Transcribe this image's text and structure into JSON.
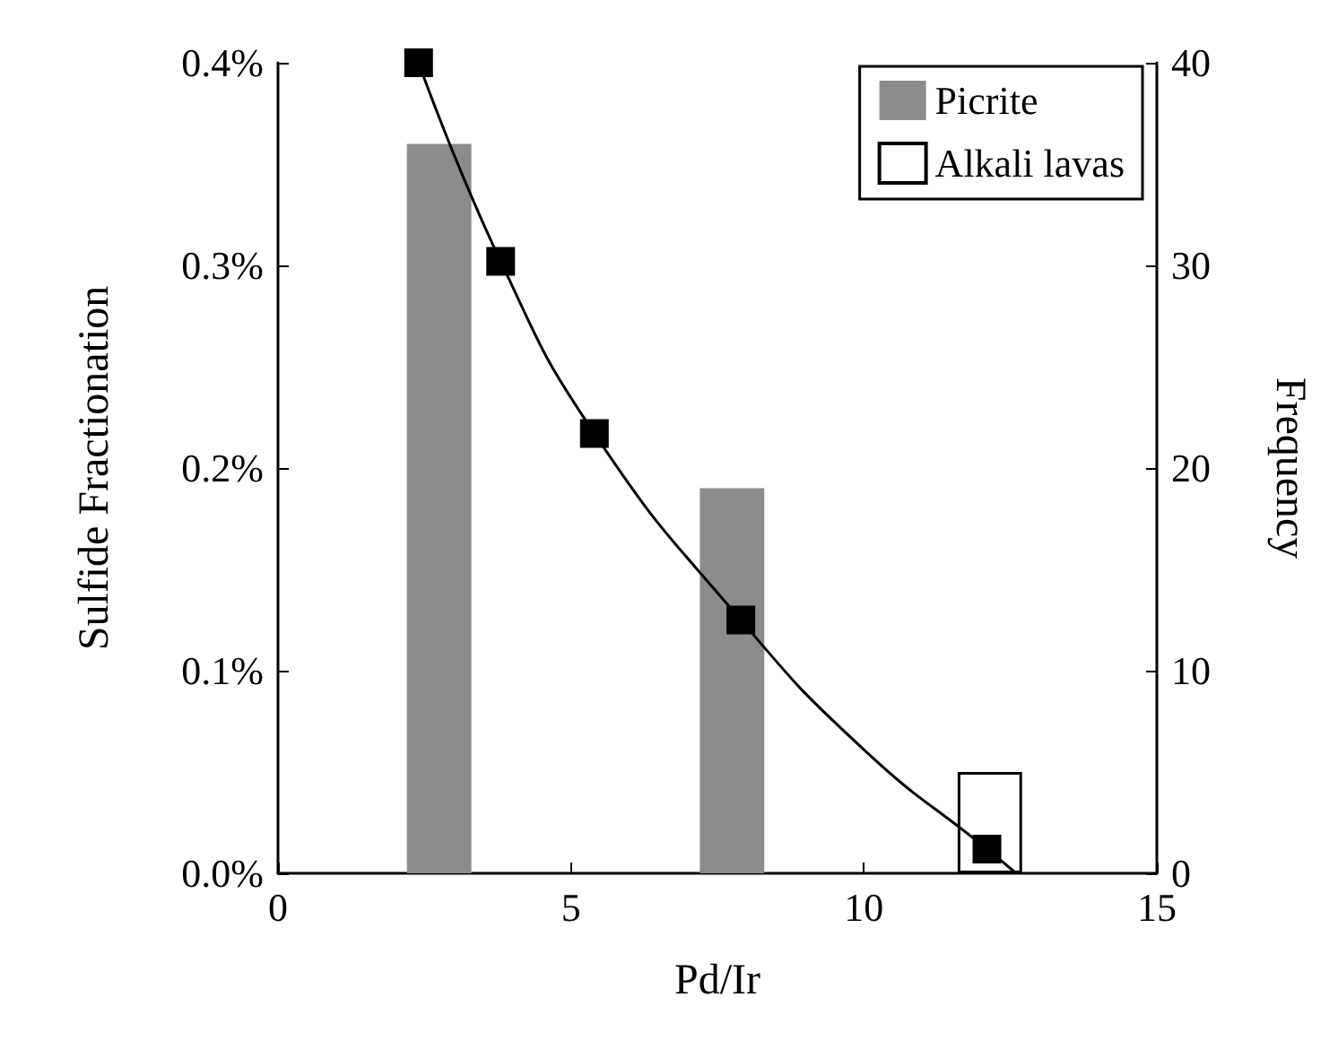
{
  "chart_data": {
    "type": "bar",
    "xlabel": "Pd/Ir",
    "ylabel": "Sulfide Fractionation",
    "y2label": "Frequency",
    "xlim": [
      0,
      15
    ],
    "xticks": [
      0,
      5,
      10,
      15
    ],
    "ylim": [
      0,
      0.4
    ],
    "yticks": [
      {
        "value": 0,
        "label": "0.0%"
      },
      {
        "value": 0.1,
        "label": "0.1%"
      },
      {
        "value": 0.2,
        "label": "0.2%"
      },
      {
        "value": 0.3,
        "label": "0.3%"
      },
      {
        "value": 0.4,
        "label": "0.4%"
      }
    ],
    "y2lim": [
      0,
      40
    ],
    "y2ticks": [
      0,
      10,
      20,
      30,
      40
    ],
    "legend": "top right",
    "series": [
      {
        "name": "Picrite",
        "color": "#8c8c8c",
        "axis": "y2",
        "x": [
          2.75,
          7.75
        ],
        "values": [
          36,
          19
        ]
      },
      {
        "name": "Alkali lavas",
        "color": "#ffffff",
        "axis": "y2",
        "x": [
          12.15
        ],
        "values": [
          5
        ]
      },
      {
        "type": "line",
        "color": "#000000",
        "marker": "none",
        "x": [
          2.4,
          3.8,
          5.4,
          7.9,
          10,
          12.1,
          12.6
        ],
        "values": [
          0.4,
          0.302,
          0.217,
          0.125,
          0.061,
          0.012,
          0
        ]
      },
      {
        "type": "scatter",
        "color": "#000000",
        "marker": "square",
        "x": [
          2.4,
          3.8,
          5.4,
          7.9,
          12.1
        ],
        "values": [
          0.4,
          0.302,
          0.217,
          0.125,
          0.012
        ]
      }
    ]
  }
}
